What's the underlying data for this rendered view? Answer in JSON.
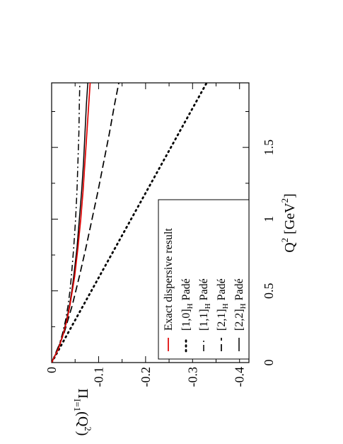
{
  "chart_data": {
    "type": "line",
    "orientation": "rotated-90-clockwise",
    "xlabel": {
      "base": "Q",
      "sup": "2",
      "unit_open": " [GeV",
      "unit_sup": "2",
      "unit_close": "]"
    },
    "ylabel": {
      "base": "Π",
      "sub": "I=1",
      "arg": "(Q",
      "arg_sup": "2",
      "arg_close": ")"
    },
    "xlim": [
      0,
      1.95
    ],
    "ylim": [
      -0.42,
      0
    ],
    "xticks": [
      {
        "v": 0,
        "label": "0"
      },
      {
        "v": 0.5,
        "label": "0.5"
      },
      {
        "v": 1,
        "label": "1"
      },
      {
        "v": 1.5,
        "label": "1.5"
      }
    ],
    "yticks": [
      {
        "v": 0,
        "label": "0"
      },
      {
        "v": -0.1,
        "label": "-0.1"
      },
      {
        "v": -0.2,
        "label": "-0.2"
      },
      {
        "v": -0.3,
        "label": "-0.3"
      },
      {
        "v": -0.4,
        "label": "-0.4"
      }
    ],
    "grid": false,
    "legend_position": "lower-right",
    "series": [
      {
        "legend": {
          "main": "Exact dispersive result"
        },
        "color": "#e00000",
        "dash": "solid",
        "width": 1.7,
        "x": [
          0,
          0.1,
          0.2,
          0.3,
          0.4,
          0.5,
          0.6,
          0.8,
          1.0,
          1.2,
          1.4,
          1.6,
          1.8,
          1.95
        ],
        "y": [
          0,
          -0.015,
          -0.025,
          -0.033,
          -0.039,
          -0.044,
          -0.049,
          -0.056,
          -0.062,
          -0.067,
          -0.071,
          -0.075,
          -0.079,
          -0.082
        ]
      },
      {
        "legend": {
          "main": "[1,0]",
          "sub": "H",
          "suffix": " Padé"
        },
        "color": "#000000",
        "dash": "1.6 5.2",
        "cap": "round",
        "width": 2.8,
        "x": [
          0,
          1.95
        ],
        "y": [
          0,
          -0.33
        ]
      },
      {
        "legend": {
          "main": "[1,1]",
          "sub": "H",
          "suffix": " Padé"
        },
        "color": "#000000",
        "dash": "9 4 2 4",
        "width": 1.5,
        "x": [
          0,
          0.1,
          0.2,
          0.3,
          0.4,
          0.5,
          0.6,
          0.8,
          1.0,
          1.2,
          1.4,
          1.6,
          1.8,
          1.95
        ],
        "y": [
          0,
          -0.014,
          -0.023,
          -0.03,
          -0.035,
          -0.039,
          -0.042,
          -0.047,
          -0.051,
          -0.054,
          -0.056,
          -0.058,
          -0.059,
          -0.06
        ]
      },
      {
        "legend": {
          "main": "[2,1]",
          "sub": "H",
          "suffix": " Padé"
        },
        "color": "#000000",
        "dash": "10 5",
        "width": 1.7,
        "x": [
          0,
          0.2,
          0.4,
          0.6,
          0.8,
          1.0,
          1.2,
          1.4,
          1.6,
          1.8,
          1.95
        ],
        "y": [
          0,
          -0.026,
          -0.044,
          -0.059,
          -0.073,
          -0.086,
          -0.099,
          -0.111,
          -0.123,
          -0.134,
          -0.143
        ]
      },
      {
        "legend": {
          "main": "[2,2]",
          "sub": "H",
          "suffix": " Padé"
        },
        "color": "#000000",
        "dash": "solid",
        "width": 1.5,
        "x": [
          0,
          0.1,
          0.2,
          0.3,
          0.4,
          0.5,
          0.6,
          0.8,
          1.0,
          1.2,
          1.4,
          1.6,
          1.8,
          1.95
        ],
        "y": [
          0,
          -0.0145,
          -0.0245,
          -0.032,
          -0.038,
          -0.043,
          -0.047,
          -0.054,
          -0.059,
          -0.064,
          -0.068,
          -0.071,
          -0.074,
          -0.077
        ]
      }
    ]
  }
}
